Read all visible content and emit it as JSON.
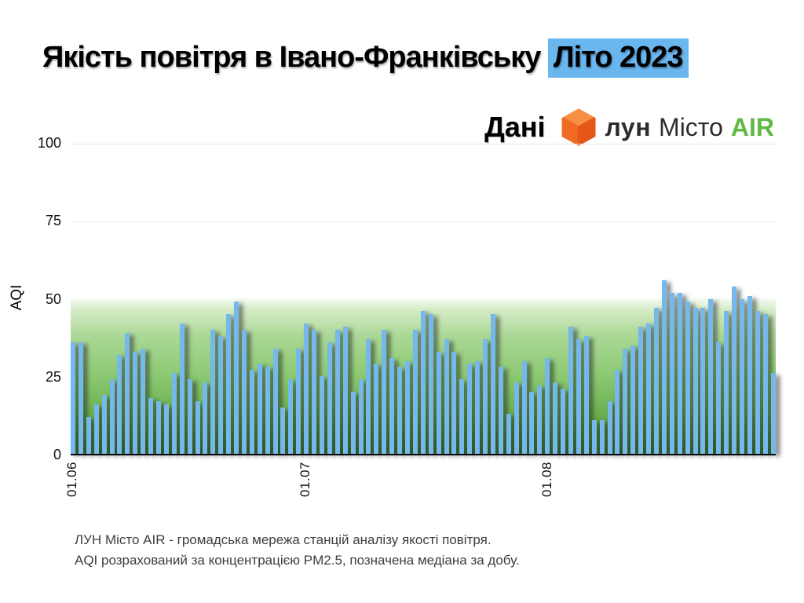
{
  "title": {
    "plain": "Якість повітря в Івано-Франківську ",
    "highlight": "Літо 2023",
    "highlight_bg": "#6ab7f0"
  },
  "attribution": {
    "label": "Дані",
    "logo": {
      "icon": "cube-icon",
      "brand_bold": "лун",
      "brand_regular": "Місто",
      "brand_accent": "AIR",
      "accent_color": "#5fb943",
      "cube_colors": {
        "top": "#f78f44",
        "left": "#ef6a24",
        "right": "#e65617"
      }
    }
  },
  "chart_data": {
    "type": "bar",
    "title": "Якість повітря в Івано-Франківську Літо 2023",
    "xlabel": "",
    "ylabel": "AQI",
    "ylim": [
      0,
      100
    ],
    "yticks": [
      0,
      25,
      50,
      75,
      100
    ],
    "grid": true,
    "bar_color": "#74b8ec",
    "good_band": {
      "from": 0,
      "to": 50,
      "color": "green-gradient"
    },
    "xticks": [
      {
        "label": "01.06",
        "index": 0
      },
      {
        "label": "01.07",
        "index": 30
      },
      {
        "label": "01.08",
        "index": 61
      }
    ],
    "values": [
      36,
      36,
      12,
      16,
      19,
      24,
      32,
      39,
      33,
      34,
      18,
      17,
      16,
      26,
      42,
      24,
      17,
      23,
      40,
      38,
      45,
      49,
      40,
      27,
      29,
      28,
      34,
      15,
      24,
      34,
      42,
      40,
      25,
      36,
      40,
      41,
      20,
      24,
      37,
      29,
      40,
      31,
      28,
      30,
      40,
      46,
      45,
      33,
      37,
      33,
      24,
      29,
      30,
      37,
      45,
      28,
      13,
      23,
      30,
      20,
      22,
      31,
      23,
      21,
      41,
      37,
      38,
      11,
      11,
      17,
      27,
      34,
      35,
      41,
      42,
      47,
      56,
      52,
      52,
      49,
      47,
      47,
      50,
      36,
      46,
      54,
      50,
      51,
      46,
      45,
      26
    ]
  },
  "footer": {
    "line1": "ЛУН Місто AIR - громадська мережа станцій аналізу якості повітря.",
    "line2": "AQI розрахований за концентрацією PM2.5, позначена медіана за добу."
  }
}
